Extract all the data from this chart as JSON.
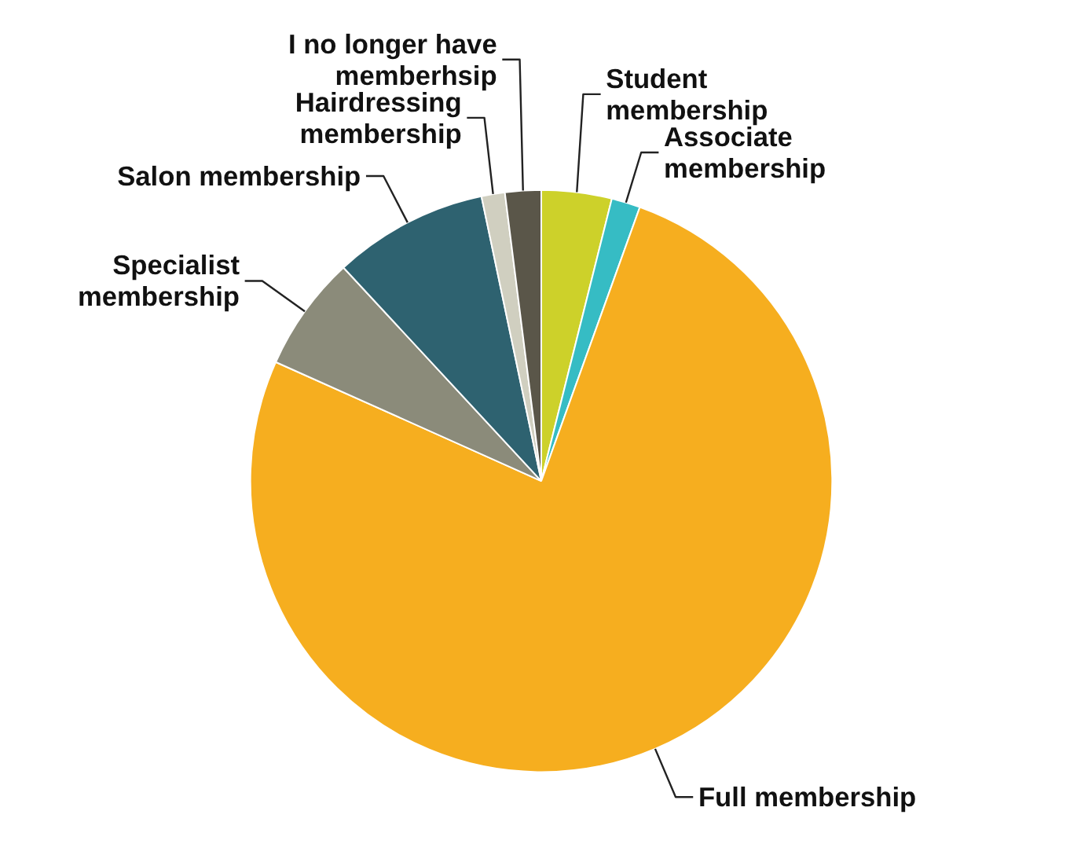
{
  "chart_data": {
    "type": "pie",
    "categories": [
      "Student membership",
      "Associate membership",
      "Full membership",
      "Specialist membership",
      "Salon membership",
      "Hairdressing membership",
      "I no longer have memberhsip"
    ],
    "values": [
      3.9,
      1.6,
      76.2,
      6.4,
      8.6,
      1.3,
      2.0
    ],
    "colors": [
      "#cdd12a",
      "#36bcc4",
      "#f6ae1f",
      "#8b8b7a",
      "#2e6270",
      "#d0cfc0",
      "#5a5649"
    ]
  }
}
